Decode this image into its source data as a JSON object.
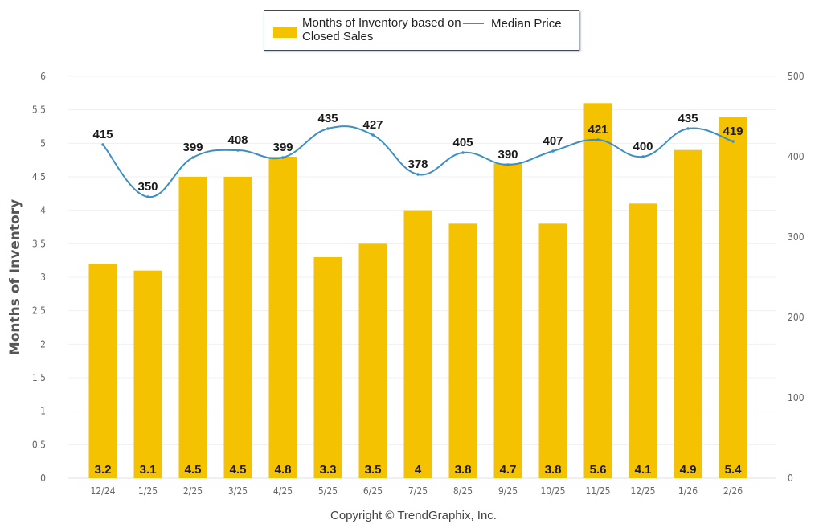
{
  "chart_data": {
    "type": "bar+line",
    "title": "",
    "categories": [
      "12/24",
      "1/25",
      "2/25",
      "3/25",
      "4/25",
      "5/25",
      "6/25",
      "7/25",
      "8/25",
      "9/25",
      "10/25",
      "11/25",
      "12/25",
      "1/26",
      "2/26"
    ],
    "series": [
      {
        "name": "Months of Inventory based on Closed Sales",
        "type": "bar",
        "axis": "left",
        "color": "#f5c200",
        "values": [
          3.2,
          3.1,
          4.5,
          4.5,
          4.8,
          3.3,
          3.5,
          4,
          3.8,
          4.7,
          3.8,
          5.6,
          4.1,
          4.9,
          5.4
        ],
        "labels": [
          "3.2",
          "3.1",
          "4.5",
          "4.5",
          "4.8",
          "3.3",
          "3.5",
          "4",
          "3.8",
          "4.7",
          "3.8",
          "5.6",
          "4.1",
          "4.9",
          "5.4"
        ]
      },
      {
        "name": "Median Price",
        "type": "line",
        "axis": "right",
        "color": "#3b8fc4",
        "values": [
          415,
          350,
          399,
          408,
          399,
          435,
          427,
          378,
          405,
          390,
          407,
          421,
          400,
          435,
          419
        ],
        "labels": [
          "415",
          "350",
          "399",
          "408",
          "399",
          "435",
          "427",
          "378",
          "405",
          "390",
          "407",
          "421",
          "400",
          "435",
          "419"
        ]
      }
    ],
    "ylabel": "Months of Inventory",
    "y2label": "",
    "xlabel": "",
    "ylim": [
      0,
      6
    ],
    "y2lim": [
      0,
      500
    ],
    "yticks": [
      "0",
      "0.5",
      "1",
      "1.5",
      "2",
      "2.5",
      "3",
      "3.5",
      "4",
      "4.5",
      "5",
      "5.5",
      "6"
    ],
    "y2ticks": [
      "0",
      "100",
      "200",
      "300",
      "400",
      "500"
    ],
    "grid": true,
    "legend_position": "top-center",
    "footer": "Copyright © TrendGraphix, Inc."
  },
  "legend": {
    "bar_label": "Months of Inventory based on Closed Sales",
    "line_label": "Median Price"
  }
}
